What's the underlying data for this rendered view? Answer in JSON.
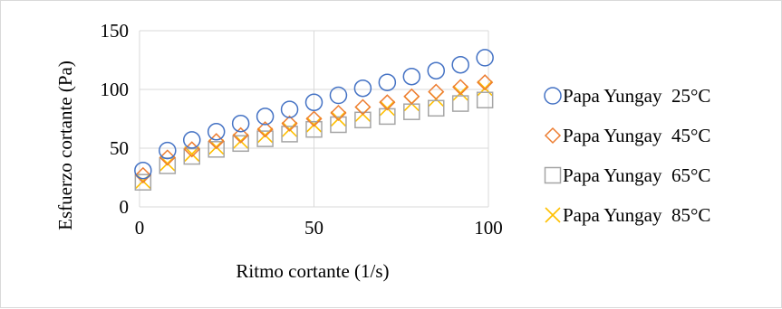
{
  "chart_data": {
    "type": "scatter",
    "title": "",
    "xlabel": "Ritmo cortante (1/s)",
    "ylabel": "Esfuerzo cortante (Pa)",
    "xlim": [
      0,
      100
    ],
    "ylim": [
      0,
      150
    ],
    "xticks": [
      0,
      50,
      100
    ],
    "yticks": [
      0,
      50,
      100,
      150
    ],
    "grid": "major",
    "legend_position": "right",
    "x": [
      1,
      8,
      15,
      22,
      29,
      36,
      43,
      50,
      57,
      64,
      71,
      78,
      85,
      92,
      99
    ],
    "series": [
      {
        "name": "Papa Yungay  25°C",
        "marker": "circle",
        "color": "#4472C4",
        "values": [
          31,
          48,
          57,
          64,
          71,
          77,
          83,
          89,
          95,
          101,
          106,
          111,
          116,
          121,
          127
        ]
      },
      {
        "name": "Papa Yungay  45°C",
        "marker": "diamond",
        "color": "#ED7D31",
        "values": [
          27,
          42,
          49,
          56,
          61,
          66,
          71,
          75,
          80,
          85,
          89,
          94,
          98,
          102,
          106
        ]
      },
      {
        "name": "Papa Yungay  65°C",
        "marker": "square",
        "color": "#A5A5A5",
        "values": [
          21,
          35,
          43,
          49,
          54,
          58,
          62,
          66,
          70,
          74,
          77,
          81,
          84,
          88,
          91
        ]
      },
      {
        "name": "Papa Yungay  85°C",
        "marker": "x",
        "color": "#FFC000",
        "values": [
          22,
          37,
          45,
          51,
          56,
          61,
          66,
          70,
          75,
          79,
          84,
          88,
          92,
          97,
          101
        ]
      }
    ]
  }
}
